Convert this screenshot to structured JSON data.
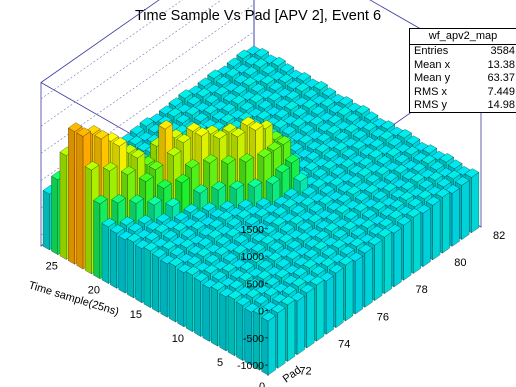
{
  "chart_data": {
    "type": "lego3d",
    "title": "Time Sample Vs Pad [APV 2], Event 6",
    "histogram_name": "wf_apv2_map",
    "xlabel": "Time sample(25ns)",
    "ylabel": "Pad",
    "x_ticks": [
      "25",
      "20",
      "15",
      "10",
      "5",
      "0"
    ],
    "y_ticks": [
      "72",
      "74",
      "76",
      "78",
      "80",
      "82"
    ],
    "z_ticks": [
      "1500",
      "1000",
      "500",
      "0",
      "-500",
      "-1000"
    ],
    "xlim": [
      0,
      27
    ],
    "ylim": [
      71,
      82
    ],
    "zlim": [
      -1200,
      1800
    ],
    "baseline": -200,
    "signal_track": [
      {
        "pad": 71.0,
        "x_center": 23.0,
        "peak": 1500
      },
      {
        "pad": 71.5,
        "x_center": 22.0,
        "peak": 1400
      },
      {
        "pad": 72.0,
        "x_center": 21.0,
        "peak": 1200
      },
      {
        "pad": 72.5,
        "x_center": 20.0,
        "peak": 900
      },
      {
        "pad": 73.0,
        "x_center": 19.0,
        "peak": 600
      },
      {
        "pad": 73.5,
        "x_center": 18.5,
        "peak": 1100
      },
      {
        "pad": 74.0,
        "x_center": 18.0,
        "peak": 1000
      },
      {
        "pad": 74.5,
        "x_center": 17.0,
        "peak": 1100
      },
      {
        "pad": 75.0,
        "x_center": 16.0,
        "peak": 1000
      },
      {
        "pad": 75.5,
        "x_center": 15.0,
        "peak": 1000
      },
      {
        "pad": 76.0,
        "x_center": 14.0,
        "peak": 1100
      },
      {
        "pad": 76.5,
        "x_center": 13.5,
        "peak": 800
      },
      {
        "pad": 77.0,
        "x_center": 13.0,
        "peak": 600
      }
    ],
    "stats": [
      {
        "label": "Entries",
        "value": "3584"
      },
      {
        "label": "Mean x",
        "value": "13.38"
      },
      {
        "label": "Mean y",
        "value": "63.37"
      },
      {
        "label": "RMS x",
        "value": "7.449"
      },
      {
        "label": "RMS y",
        "value": "14.98"
      }
    ]
  }
}
